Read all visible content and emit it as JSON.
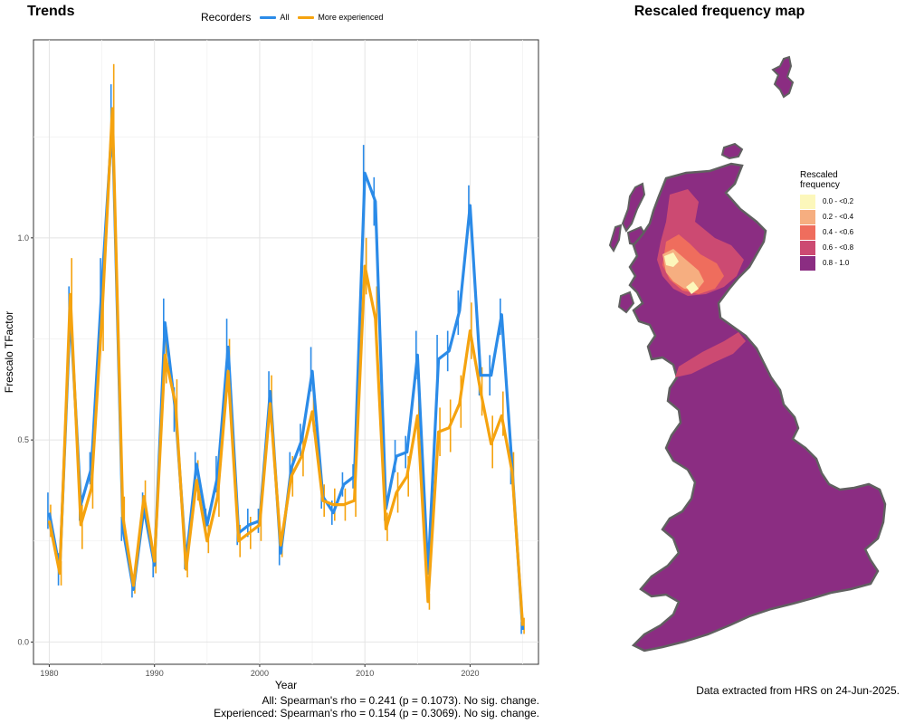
{
  "left_title": "Trends",
  "right_title": "Rescaled frequency map",
  "legend": {
    "title": "Recorders",
    "entries": [
      {
        "name": "All",
        "color": "#2b8be8"
      },
      {
        "name": "More experienced",
        "color": "#f5a30f"
      }
    ]
  },
  "stats": {
    "line1": "All: Spearman's rho = 0.241 (p = 0.1073). No sig. change.",
    "line2": "Experienced: Spearman's rho = 0.154 (p = 0.3069). No sig. change."
  },
  "footnote": "Data extracted from HRS on 24-Jun-2025.",
  "map": {
    "legend_title_line1": "Rescaled",
    "legend_title_line2": "frequency",
    "bins": [
      {
        "label": "0.0 - <0.2",
        "color": "#fcf7bb"
      },
      {
        "label": "0.2 - <0.4",
        "color": "#f6ae80"
      },
      {
        "label": "0.4 - <0.6",
        "color": "#ef6d5d"
      },
      {
        "label": "0.6 - <0.8",
        "color": "#cc4a72"
      },
      {
        "label": "0.8 - 1.0",
        "color": "#8b2d82"
      }
    ],
    "coastline_color": "#606060"
  },
  "chart_data": {
    "type": "line",
    "xlabel": "Year",
    "ylabel": "Frescalo TFactor",
    "xlim": [
      1978.5,
      2026.5
    ],
    "ylim": [
      -0.055,
      1.49
    ],
    "xticks": [
      1980,
      1990,
      2000,
      2010,
      2020
    ],
    "yticks": [
      0.0,
      0.5,
      1.0
    ],
    "ytick_labels": [
      "0.0",
      "0.5",
      "1.0"
    ],
    "grid": true,
    "legend_position": "top",
    "x": [
      1980,
      1981,
      1982,
      1983,
      1984,
      1985,
      1986,
      1987,
      1988,
      1989,
      1990,
      1991,
      1992,
      1993,
      1994,
      1995,
      1996,
      1997,
      1998,
      1999,
      2000,
      2001,
      2002,
      2003,
      2004,
      2005,
      2006,
      2007,
      2008,
      2009,
      2010,
      2011,
      2012,
      2013,
      2014,
      2015,
      2016,
      2017,
      2018,
      2019,
      2020,
      2021,
      2022,
      2023,
      2024,
      2025
    ],
    "series": [
      {
        "name": "All",
        "color": "#2b8be8",
        "values": [
          0.32,
          0.18,
          0.82,
          0.34,
          0.43,
          0.88,
          1.29,
          0.28,
          0.13,
          0.33,
          0.19,
          0.79,
          0.57,
          0.2,
          0.44,
          0.29,
          0.41,
          0.73,
          0.27,
          0.29,
          0.3,
          0.62,
          0.22,
          0.43,
          0.5,
          0.67,
          0.36,
          0.32,
          0.39,
          0.41,
          1.16,
          1.09,
          0.33,
          0.46,
          0.47,
          0.71,
          0.17,
          0.7,
          0.72,
          0.82,
          1.08,
          0.66,
          0.66,
          0.81,
          0.43,
          0.03
        ],
        "lower": [
          0.28,
          0.14,
          0.76,
          0.3,
          0.39,
          0.82,
          1.2,
          0.25,
          0.11,
          0.3,
          0.16,
          0.74,
          0.52,
          0.18,
          0.41,
          0.26,
          0.37,
          0.67,
          0.24,
          0.26,
          0.27,
          0.57,
          0.19,
          0.4,
          0.46,
          0.62,
          0.33,
          0.29,
          0.36,
          0.38,
          1.09,
          1.03,
          0.3,
          0.42,
          0.43,
          0.65,
          0.15,
          0.65,
          0.67,
          0.76,
          1.03,
          0.61,
          0.61,
          0.76,
          0.39,
          0.02
        ],
        "upper": [
          0.37,
          0.22,
          0.88,
          0.38,
          0.47,
          0.95,
          1.38,
          0.31,
          0.15,
          0.37,
          0.22,
          0.85,
          0.63,
          0.23,
          0.47,
          0.33,
          0.46,
          0.8,
          0.3,
          0.33,
          0.33,
          0.67,
          0.25,
          0.47,
          0.54,
          0.73,
          0.4,
          0.35,
          0.42,
          0.44,
          1.23,
          1.15,
          0.37,
          0.5,
          0.51,
          0.77,
          0.19,
          0.76,
          0.77,
          0.87,
          1.13,
          0.71,
          0.71,
          0.85,
          0.48,
          0.05
        ]
      },
      {
        "name": "More experienced",
        "color": "#f5a30f",
        "values": [
          0.3,
          0.17,
          0.86,
          0.29,
          0.38,
          0.8,
          1.32,
          0.31,
          0.14,
          0.36,
          0.2,
          0.71,
          0.59,
          0.18,
          0.4,
          0.25,
          0.36,
          0.67,
          0.25,
          0.27,
          0.29,
          0.59,
          0.24,
          0.41,
          0.46,
          0.57,
          0.35,
          0.34,
          0.34,
          0.35,
          0.93,
          0.8,
          0.28,
          0.37,
          0.41,
          0.56,
          0.1,
          0.52,
          0.53,
          0.59,
          0.77,
          0.62,
          0.49,
          0.56,
          0.42,
          0.04
        ],
        "lower": [
          0.26,
          0.14,
          0.78,
          0.23,
          0.33,
          0.72,
          1.19,
          0.27,
          0.12,
          0.31,
          0.17,
          0.64,
          0.53,
          0.16,
          0.35,
          0.22,
          0.31,
          0.59,
          0.21,
          0.23,
          0.25,
          0.52,
          0.21,
          0.36,
          0.41,
          0.52,
          0.31,
          0.3,
          0.3,
          0.31,
          0.86,
          0.73,
          0.25,
          0.32,
          0.36,
          0.5,
          0.08,
          0.46,
          0.47,
          0.53,
          0.7,
          0.56,
          0.43,
          0.51,
          0.37,
          0.02
        ],
        "upper": [
          0.34,
          0.2,
          0.95,
          0.34,
          0.44,
          0.89,
          1.43,
          0.36,
          0.16,
          0.4,
          0.23,
          0.78,
          0.65,
          0.21,
          0.45,
          0.29,
          0.41,
          0.75,
          0.29,
          0.31,
          0.33,
          0.66,
          0.27,
          0.46,
          0.51,
          0.63,
          0.39,
          0.38,
          0.38,
          0.39,
          1.0,
          0.88,
          0.32,
          0.42,
          0.46,
          0.62,
          0.12,
          0.58,
          0.6,
          0.66,
          0.84,
          0.68,
          0.56,
          0.62,
          0.47,
          0.06
        ]
      }
    ]
  }
}
